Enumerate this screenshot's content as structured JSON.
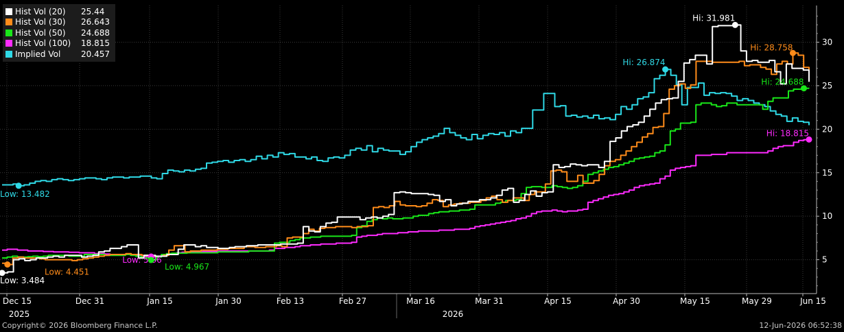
{
  "chart_data": {
    "type": "line",
    "ylim": [
      0,
      33
    ],
    "y_ticks": [
      5,
      10,
      15,
      20,
      25,
      30
    ],
    "x_ticks": [
      "Dec 15",
      "Dec 31",
      "Jan 15",
      "Jan 30",
      "Feb 13",
      "Feb 27",
      "Mar 16",
      "Mar 31",
      "Apr 15",
      "Apr 30",
      "May 15",
      "May 29",
      "Jun 15"
    ],
    "years": [
      "2025",
      "2026"
    ],
    "series": [
      {
        "name": "Implied Vol",
        "color": "#2fd9e6",
        "last": "20.457",
        "values": [
          13.6,
          13.6,
          13.7,
          13.5,
          13.6,
          13.8,
          14.0,
          14.1,
          14.0,
          14.2,
          14.3,
          14.2,
          14.1,
          14.2,
          14.3,
          14.4,
          14.4,
          14.3,
          14.2,
          14.4,
          14.5,
          14.5,
          14.4,
          14.5,
          14.5,
          14.6,
          14.6,
          14.4,
          14.3,
          14.9,
          15.3,
          15.2,
          15.1,
          15.3,
          15.2,
          15.4,
          15.5,
          16.1,
          16.2,
          16.3,
          16.4,
          16.2,
          16.4,
          16.5,
          16.3,
          16.5,
          16.9,
          16.6,
          17.0,
          16.8,
          17.3,
          17.1,
          17.2,
          16.8,
          16.8,
          16.6,
          16.8,
          16.4,
          16.3,
          16.7,
          16.8,
          16.7,
          17.0,
          17.6,
          17.8,
          17.6,
          18.1,
          17.4,
          17.8,
          17.6,
          17.5,
          17.5,
          17.1,
          17.4,
          18.0,
          18.5,
          18.8,
          19.0,
          19.2,
          19.5,
          20.1,
          19.6,
          19.3,
          19.0,
          18.8,
          19.4,
          18.9,
          19.3,
          19.5,
          19.4,
          19.6,
          19.2,
          19.8,
          19.6,
          20.1,
          20.1,
          22.2,
          22.2,
          24.1,
          24.1,
          22.6,
          22.7,
          21.5,
          21.6,
          21.4,
          21.5,
          21.3,
          21.6,
          21.2,
          21.3,
          21.1,
          21.7,
          22.6,
          22.3,
          22.8,
          23.5,
          23.7,
          24.2,
          25.8,
          26.2,
          26.874,
          26.2,
          25.1,
          22.8,
          24.8,
          24.8,
          25.3,
          23.9,
          24.2,
          24.1,
          24.2,
          24.1,
          23.8,
          23.3,
          23.5,
          23.3,
          23.0,
          22.8,
          22.6,
          22.1,
          21.7,
          21.5,
          20.9,
          21.3,
          20.9,
          20.8,
          20.457
        ]
      },
      {
        "name": "Hist Vol (100)",
        "color": "#ff2bff",
        "last": "18.815",
        "values": [
          6.1,
          6.2,
          6.2,
          6.1,
          6.1,
          6.0,
          6.0,
          6.0,
          5.95,
          5.95,
          5.9,
          5.9,
          5.9,
          5.85,
          5.85,
          5.8,
          5.8,
          5.8,
          5.7,
          5.7,
          5.65,
          5.6,
          5.55,
          5.6,
          5.6,
          5.55,
          5.5,
          5.4,
          5.4,
          5.36,
          5.4,
          5.5,
          5.6,
          5.7,
          5.8,
          5.85,
          5.9,
          5.9,
          5.9,
          5.95,
          5.95,
          5.95,
          6.0,
          6.0,
          6.0,
          6.0,
          6.0,
          6.0,
          6.0,
          6.0,
          6.0,
          6.0,
          6.1,
          6.3,
          6.3,
          6.4,
          6.4,
          6.5,
          6.6,
          6.6,
          6.7,
          6.7,
          6.8,
          6.8,
          6.8,
          6.9,
          6.9,
          6.9,
          7.0,
          7.6,
          7.7,
          7.8,
          7.8,
          7.9,
          8.0,
          8.0,
          8.0,
          8.1,
          8.1,
          8.2,
          8.2,
          8.3,
          8.3,
          8.3,
          8.3,
          8.4,
          8.4,
          8.4,
          8.5,
          8.5,
          8.5,
          8.6,
          8.8,
          8.9,
          9.0,
          9.1,
          9.2,
          9.3,
          9.4,
          9.5,
          9.7,
          9.8,
          10.0,
          10.3,
          10.5,
          10.6,
          10.6,
          10.7,
          10.6,
          10.5,
          10.6,
          10.6,
          10.7,
          10.8,
          11.6,
          11.8,
          12.0,
          12.2,
          12.4,
          12.5,
          12.6,
          12.8,
          13.0,
          13.3,
          13.5,
          13.6,
          13.7,
          13.8,
          14.3,
          14.6,
          15.3,
          15.5,
          15.6,
          15.7,
          15.8,
          17.0,
          17.0,
          17.0,
          17.1,
          17.1,
          17.1,
          17.3,
          17.3,
          17.3,
          17.3,
          17.3,
          17.3,
          17.3,
          17.3,
          17.5,
          17.8,
          18.0,
          18.1,
          18.1,
          18.5,
          18.7,
          18.8,
          18.815
        ]
      },
      {
        "name": "Hist Vol (50)",
        "color": "#19e619",
        "last": "24.688",
        "values": [
          5.2,
          5.3,
          5.4,
          5.3,
          5.3,
          5.35,
          5.4,
          5.35,
          5.4,
          5.5,
          5.5,
          5.5,
          5.5,
          5.4,
          5.4,
          5.4,
          5.6,
          5.6,
          5.6,
          5.6,
          5.5,
          5.5,
          5.5,
          5.5,
          5.6,
          5.5,
          5.4,
          5.3,
          5.2,
          4.967,
          5.3,
          5.6,
          5.7,
          5.75,
          5.75,
          5.75,
          5.8,
          5.8,
          5.8,
          5.8,
          5.8,
          5.8,
          5.9,
          5.9,
          5.9,
          5.9,
          5.9,
          5.9,
          6.0,
          6.0,
          6.0,
          6.0,
          6.0,
          6.9,
          7.0,
          7.0,
          7.2,
          7.3,
          7.5,
          7.5,
          7.6,
          7.6,
          7.7,
          7.7,
          7.7,
          7.7,
          7.7,
          7.7,
          7.8,
          8.7,
          8.9,
          9.4,
          9.6,
          9.8,
          9.7,
          9.8,
          9.7,
          9.7,
          9.8,
          9.8,
          10.0,
          10.1,
          10.1,
          10.3,
          10.4,
          10.5,
          10.5,
          10.6,
          10.6,
          10.7,
          10.7,
          10.8,
          11.3,
          11.3,
          11.3,
          11.3,
          11.5,
          11.6,
          11.8,
          11.8,
          11.9,
          12.6,
          13.3,
          13.4,
          13.4,
          13.3,
          13.3,
          13.5,
          13.4,
          13.3,
          13.2,
          13.3,
          13.5,
          14.0,
          14.8,
          15.0,
          15.2,
          15.4,
          15.6,
          15.7,
          15.9,
          16.1,
          16.3,
          16.6,
          16.7,
          16.8,
          16.9,
          17.3,
          17.5,
          18.2,
          19.8,
          20.0,
          20.7,
          20.7,
          20.8,
          22.8,
          23.0,
          23.0,
          22.8,
          22.6,
          22.7,
          23.0,
          23.0,
          22.8,
          22.8,
          22.8,
          22.8,
          22.8,
          22.3,
          23.2,
          23.6,
          23.6,
          23.6,
          24.4,
          24.6,
          24.6,
          24.7,
          24.688
        ]
      },
      {
        "name": "Hist Vol (30)",
        "color": "#ff8c1a",
        "last": "26.643",
        "values": [
          4.6,
          4.451,
          5.2,
          5.3,
          5.2,
          5.2,
          5.2,
          5.1,
          5.0,
          5.0,
          5.0,
          5.0,
          5.0,
          4.9,
          5.0,
          5.1,
          5.2,
          5.3,
          5.4,
          5.5,
          5.6,
          5.6,
          5.6,
          5.7,
          5.6,
          5.6,
          5.5,
          5.5,
          5.4,
          5.4,
          5.5,
          6.1,
          6.6,
          6.6,
          5.9,
          6.0,
          6.0,
          6.1,
          6.1,
          6.1,
          6.2,
          6.2,
          6.3,
          6.3,
          6.3,
          6.5,
          6.5,
          6.4,
          6.4,
          6.5,
          6.5,
          6.6,
          6.5,
          7.5,
          7.6,
          7.6,
          8.0,
          8.5,
          8.3,
          8.6,
          8.7,
          8.7,
          8.8,
          8.8,
          8.8,
          8.7,
          8.8,
          8.8,
          8.9,
          11.0,
          11.1,
          11.0,
          11.2,
          11.7,
          11.3,
          11.2,
          11.2,
          11.1,
          11.2,
          11.5,
          11.9,
          11.8,
          11.1,
          11.3,
          11.4,
          11.5,
          11.5,
          11.6,
          11.6,
          11.8,
          12.1,
          12.3,
          11.9,
          11.6,
          11.8,
          12.1,
          12.1,
          11.8,
          12.5,
          12.8,
          12.8,
          13.7,
          15.2,
          15.3,
          15.1,
          14.0,
          14.0,
          14.7,
          13.8,
          13.8,
          14.1,
          14.8,
          15.8,
          16.3,
          16.5,
          17.0,
          17.5,
          18.0,
          18.5,
          19.1,
          19.5,
          20.2,
          20.3,
          21.8,
          24.6,
          25.0,
          25.2,
          24.7,
          25.1,
          27.8,
          27.8,
          27.8,
          27.7,
          27.7,
          27.7,
          27.7,
          27.7,
          27.8,
          27.3,
          27.4,
          27.4,
          27.1,
          26.9,
          26.3,
          27.5,
          27.8,
          27.5,
          28.758,
          28.5,
          27.1,
          26.643
        ]
      },
      {
        "name": "Hist Vol (20)",
        "color": "#ffffff",
        "last": "25.44",
        "values": [
          3.484,
          3.6,
          5.0,
          5.1,
          4.9,
          5.0,
          5.2,
          5.2,
          5.3,
          5.4,
          5.3,
          5.5,
          5.5,
          5.5,
          5.3,
          5.4,
          5.5,
          5.9,
          6.0,
          6.3,
          6.3,
          6.5,
          6.7,
          6.7,
          5.2,
          5.5,
          5.5,
          5.4,
          5.4,
          5.6,
          5.6,
          6.2,
          6.7,
          6.7,
          6.5,
          6.6,
          6.4,
          6.4,
          6.3,
          6.3,
          6.4,
          6.5,
          6.5,
          6.6,
          6.6,
          6.7,
          6.7,
          6.7,
          6.7,
          6.8,
          6.8,
          6.8,
          6.9,
          8.8,
          8.3,
          8.2,
          8.8,
          9.2,
          9.3,
          9.9,
          9.9,
          9.9,
          9.9,
          9.6,
          9.8,
          9.9,
          9.8,
          10.0,
          10.2,
          12.7,
          12.8,
          12.7,
          12.6,
          12.6,
          12.6,
          12.5,
          12.4,
          11.7,
          11.9,
          11.2,
          11.4,
          11.5,
          11.7,
          11.7,
          11.9,
          11.9,
          12.1,
          12.4,
          13.0,
          13.2,
          11.6,
          11.8,
          12.5,
          12.9,
          12.3,
          12.7,
          12.8,
          15.9,
          15.6,
          15.7,
          16.0,
          15.9,
          15.8,
          15.9,
          15.9,
          15.6,
          16.3,
          18.6,
          19.0,
          19.8,
          20.3,
          20.5,
          20.8,
          21.5,
          22.3,
          23.0,
          23.4,
          23.5,
          23.6,
          25.5,
          27.6,
          28.0,
          28.5,
          28.5,
          27.5,
          31.8,
          31.9,
          31.9,
          31.9,
          31.981,
          29.0,
          27.8,
          27.9,
          27.7,
          27.7,
          27.9,
          26.6,
          25.2,
          27.5,
          27.0,
          27.0,
          26.8,
          25.44
        ]
      }
    ],
    "annotations": [
      {
        "series": "Implied Vol",
        "text": "Low: 13.482",
        "color": "#2fd9e6"
      },
      {
        "series": "Hist Vol (20)",
        "text": "Low: 3.484",
        "color": "#ffffff"
      },
      {
        "series": "Hist Vol (30)",
        "text": "Low: 4.451",
        "color": "#ff8c1a"
      },
      {
        "series": "Hist Vol (100)",
        "text": "Low: 5.36",
        "color": "#ff2bff"
      },
      {
        "series": "Hist Vol (50)",
        "text": "Low: 4.967",
        "color": "#19e619"
      },
      {
        "series": "Hist Vol (20)",
        "text": "Hi: 31.981",
        "color": "#ffffff"
      },
      {
        "series": "Hist Vol (30)",
        "text": "Hi: 28.758",
        "color": "#ff8c1a"
      },
      {
        "series": "Implied Vol",
        "text": "Hi: 26.874",
        "color": "#2fd9e6"
      },
      {
        "series": "Hist Vol (50)",
        "text": "Hi: 24.688",
        "color": "#19e619"
      },
      {
        "series": "Hist Vol (100)",
        "text": "Hi: 18.815",
        "color": "#ff2bff"
      }
    ]
  },
  "legend": [
    {
      "name": "Hist Vol (20)",
      "value": "25.44",
      "color": "#ffffff"
    },
    {
      "name": "Hist Vol (30)",
      "value": "26.643",
      "color": "#ff8c1a"
    },
    {
      "name": "Hist Vol (50)",
      "value": "24.688",
      "color": "#19e619"
    },
    {
      "name": "Hist Vol (100)",
      "value": "18.815",
      "color": "#ff2bff"
    },
    {
      "name": "Implied Vol",
      "value": "20.457",
      "color": "#2fd9e6"
    }
  ],
  "footer": {
    "copyright": "Copyright© 2026 Bloomberg Finance L.P.",
    "timestamp": "12-Jun-2026 06:52:38"
  }
}
